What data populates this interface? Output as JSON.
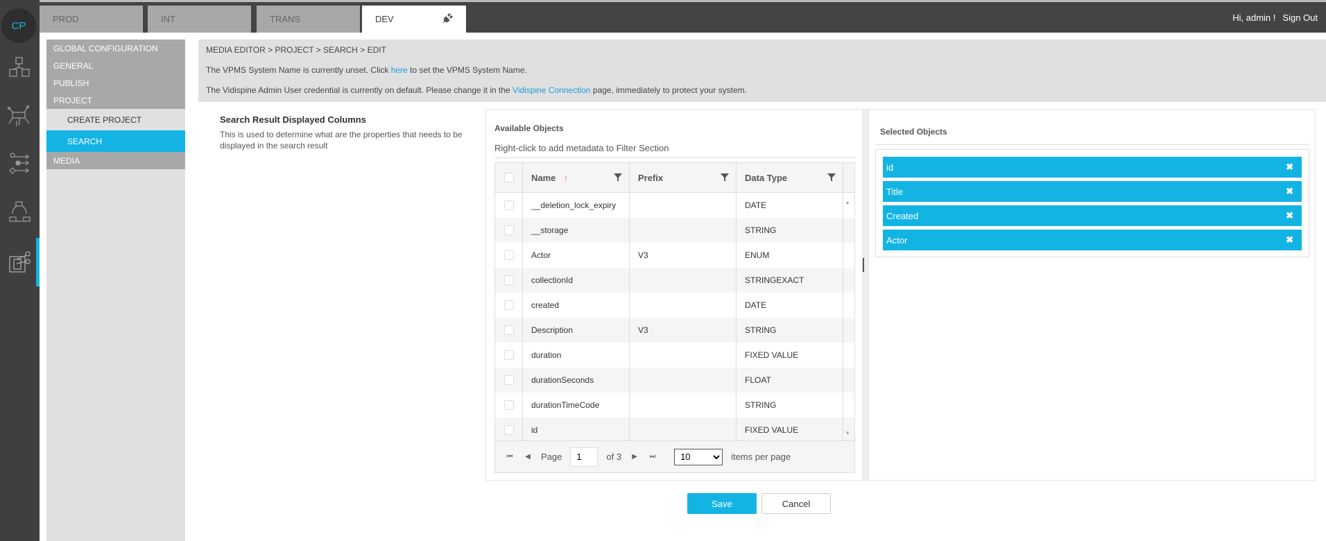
{
  "brand": {
    "logo": "CP",
    "accent": "#13b4e4"
  },
  "env_tabs": [
    {
      "label": "PROD"
    },
    {
      "label": "INT"
    },
    {
      "label": "TRANS"
    },
    {
      "label": "DEV",
      "active": true,
      "icon": "plug-icon"
    }
  ],
  "user": {
    "greeting": "Hi, admin !",
    "sign_out": "Sign Out"
  },
  "rail_icons": [
    "cubes-icon",
    "network-touch-icon",
    "workflow-icon",
    "cycle-icon",
    "media-editor-icon"
  ],
  "nav": {
    "global": "GLOBAL CONFIGURATION",
    "general": "GENERAL",
    "publish": "PUBLISH",
    "project": "PROJECT",
    "create_project": "CREATE PROJECT",
    "search": "SEARCH",
    "media": "MEDIA"
  },
  "notice": {
    "breadcrumb": "MEDIA EDITOR > PROJECT > SEARCH > EDIT",
    "line1_a": "The VPMS System Name is currently unset. Click ",
    "line1_link": "here",
    "line1_b": " to set the VPMS System Name.",
    "line2_a": "The Vidispine Admin User credential is currently on default. Please change it in the ",
    "line2_link": "Vidispine Connection",
    "line2_b": " page, immediately to protect your system."
  },
  "section": {
    "title": "Search Result Displayed Columns",
    "description": "This is used to determine what are the properties that needs to be displayed in the search result"
  },
  "available": {
    "title": "Available Objects",
    "hint": "Right-click to add metadata to Filter Section",
    "columns": [
      "Name",
      "Prefix",
      "Data Type"
    ],
    "rows": [
      {
        "name": "__deletion_lock_expiry",
        "prefix": "",
        "type": "DATE"
      },
      {
        "name": "__storage",
        "prefix": "",
        "type": "STRING"
      },
      {
        "name": "Actor",
        "prefix": "V3",
        "type": "ENUM"
      },
      {
        "name": "collectionId",
        "prefix": "",
        "type": "STRINGEXACT"
      },
      {
        "name": "created",
        "prefix": "",
        "type": "DATE"
      },
      {
        "name": "Description",
        "prefix": "V3",
        "type": "STRING"
      },
      {
        "name": "duration",
        "prefix": "",
        "type": "FIXED VALUE"
      },
      {
        "name": "durationSeconds",
        "prefix": "",
        "type": "FLOAT"
      },
      {
        "name": "durationTimeCode",
        "prefix": "",
        "type": "STRING"
      },
      {
        "name": "id",
        "prefix": "",
        "type": "FIXED VALUE"
      }
    ],
    "pager": {
      "page_label": "Page",
      "page": "1",
      "of": "of 3",
      "per_page": "10",
      "per_page_label": "items per page"
    }
  },
  "selected": {
    "title": "Selected Objects",
    "items": [
      "id",
      "Title",
      "Created",
      "Actor"
    ]
  },
  "actions": {
    "save": "Save",
    "cancel": "Cancel"
  }
}
